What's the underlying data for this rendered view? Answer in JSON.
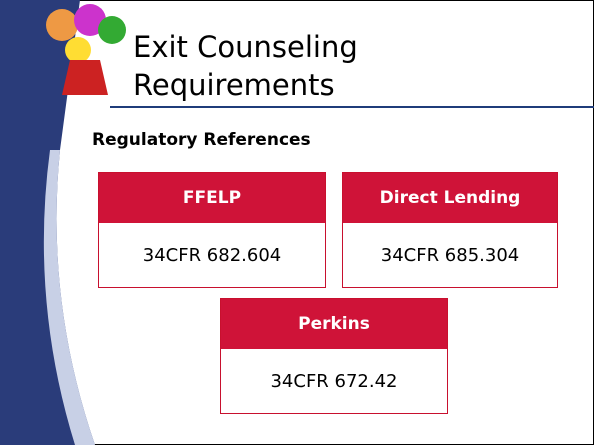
{
  "slide": {
    "title_line1": "Exit Counseling",
    "title_line2": "Requirements",
    "subtitle": "Regulatory References",
    "boxes": [
      {
        "header": "FFELP",
        "body": "34CFR 682.604"
      },
      {
        "header": "Direct Lending",
        "body": "34CFR 685.304"
      },
      {
        "header": "Perkins",
        "body": "34CFR 672.42"
      }
    ]
  }
}
